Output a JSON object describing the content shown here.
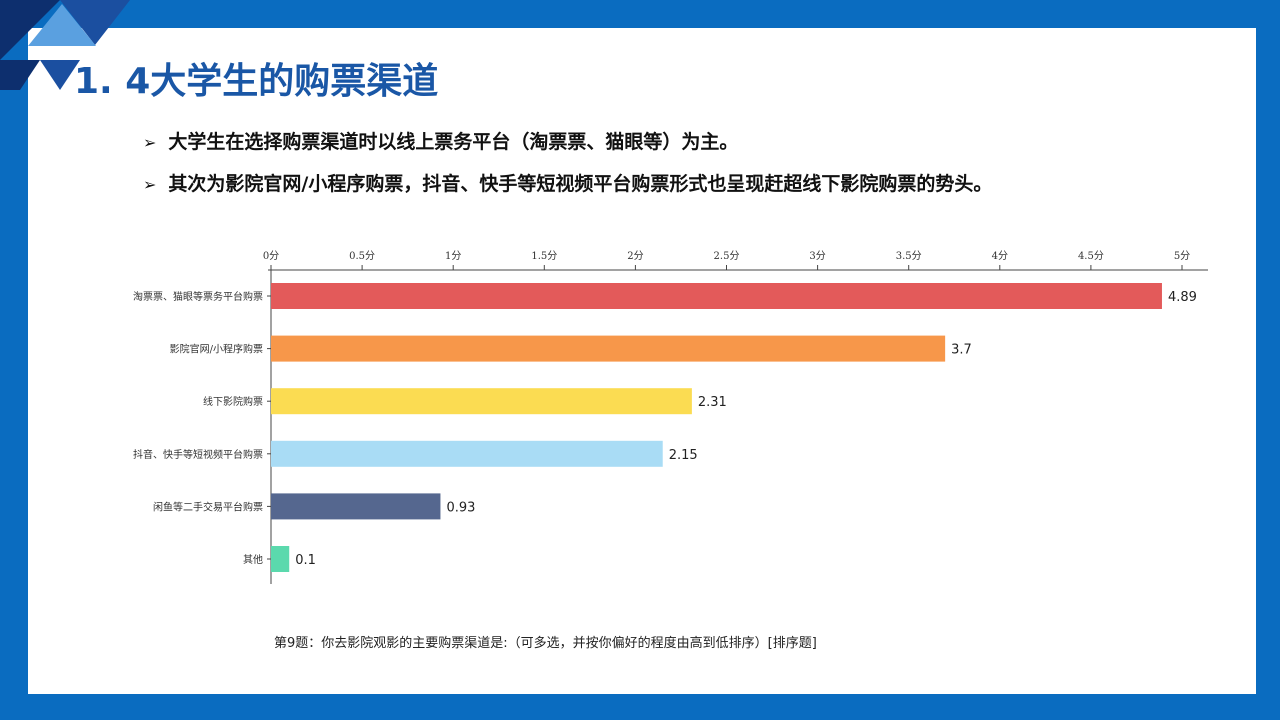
{
  "slide": {
    "title": "1. 4大学生的购票渠道",
    "bullets": [
      "大学生在选择购票渠道时以线上票务平台（淘票票、猫眼等）为主。",
      "其次为影院官网/小程序购票，抖音、快手等短视频平台购票形式也呈现赶超线下影院购票的势头。"
    ],
    "bullet_marker": "➢",
    "caption": "第9题：你去影院观影的主要购票渠道是:（可多选，并按你偏好的程度由高到低排序）[排序题]"
  },
  "chart_data": {
    "type": "bar",
    "orientation": "horizontal",
    "categories": [
      "淘票票、猫眼等票务平台购票",
      "影院官网/小程序购票",
      "线下影院购票",
      "抖音、快手等短视频平台购票",
      "闲鱼等二手交易平台购票",
      "其他"
    ],
    "values": [
      4.89,
      3.7,
      2.31,
      2.15,
      0.93,
      0.1
    ],
    "value_labels": [
      "4.89",
      "3.7",
      "2.31",
      "2.15",
      "0.93",
      "0.1"
    ],
    "colors": [
      "#e35a5a",
      "#f7974a",
      "#fbdc52",
      "#a9dcf5",
      "#55678f",
      "#5bd9ad"
    ],
    "xlim": [
      0,
      5
    ],
    "xticks": [
      0,
      0.5,
      1,
      1.5,
      2,
      2.5,
      3,
      3.5,
      4,
      4.5,
      5
    ],
    "xtick_labels": [
      "0分",
      "0.5分",
      "1分",
      "1.5分",
      "2分",
      "2.5分",
      "3分",
      "3.5分",
      "4分",
      "4.5分",
      "5分"
    ],
    "axis_position": "top",
    "grid": false
  },
  "colors": {
    "frame": "#0a6cc0",
    "title": "#1a57a6",
    "corner_dark": "#0d2f6e",
    "corner_mid": "#1b4fa0",
    "corner_light": "#5aa0e0"
  }
}
